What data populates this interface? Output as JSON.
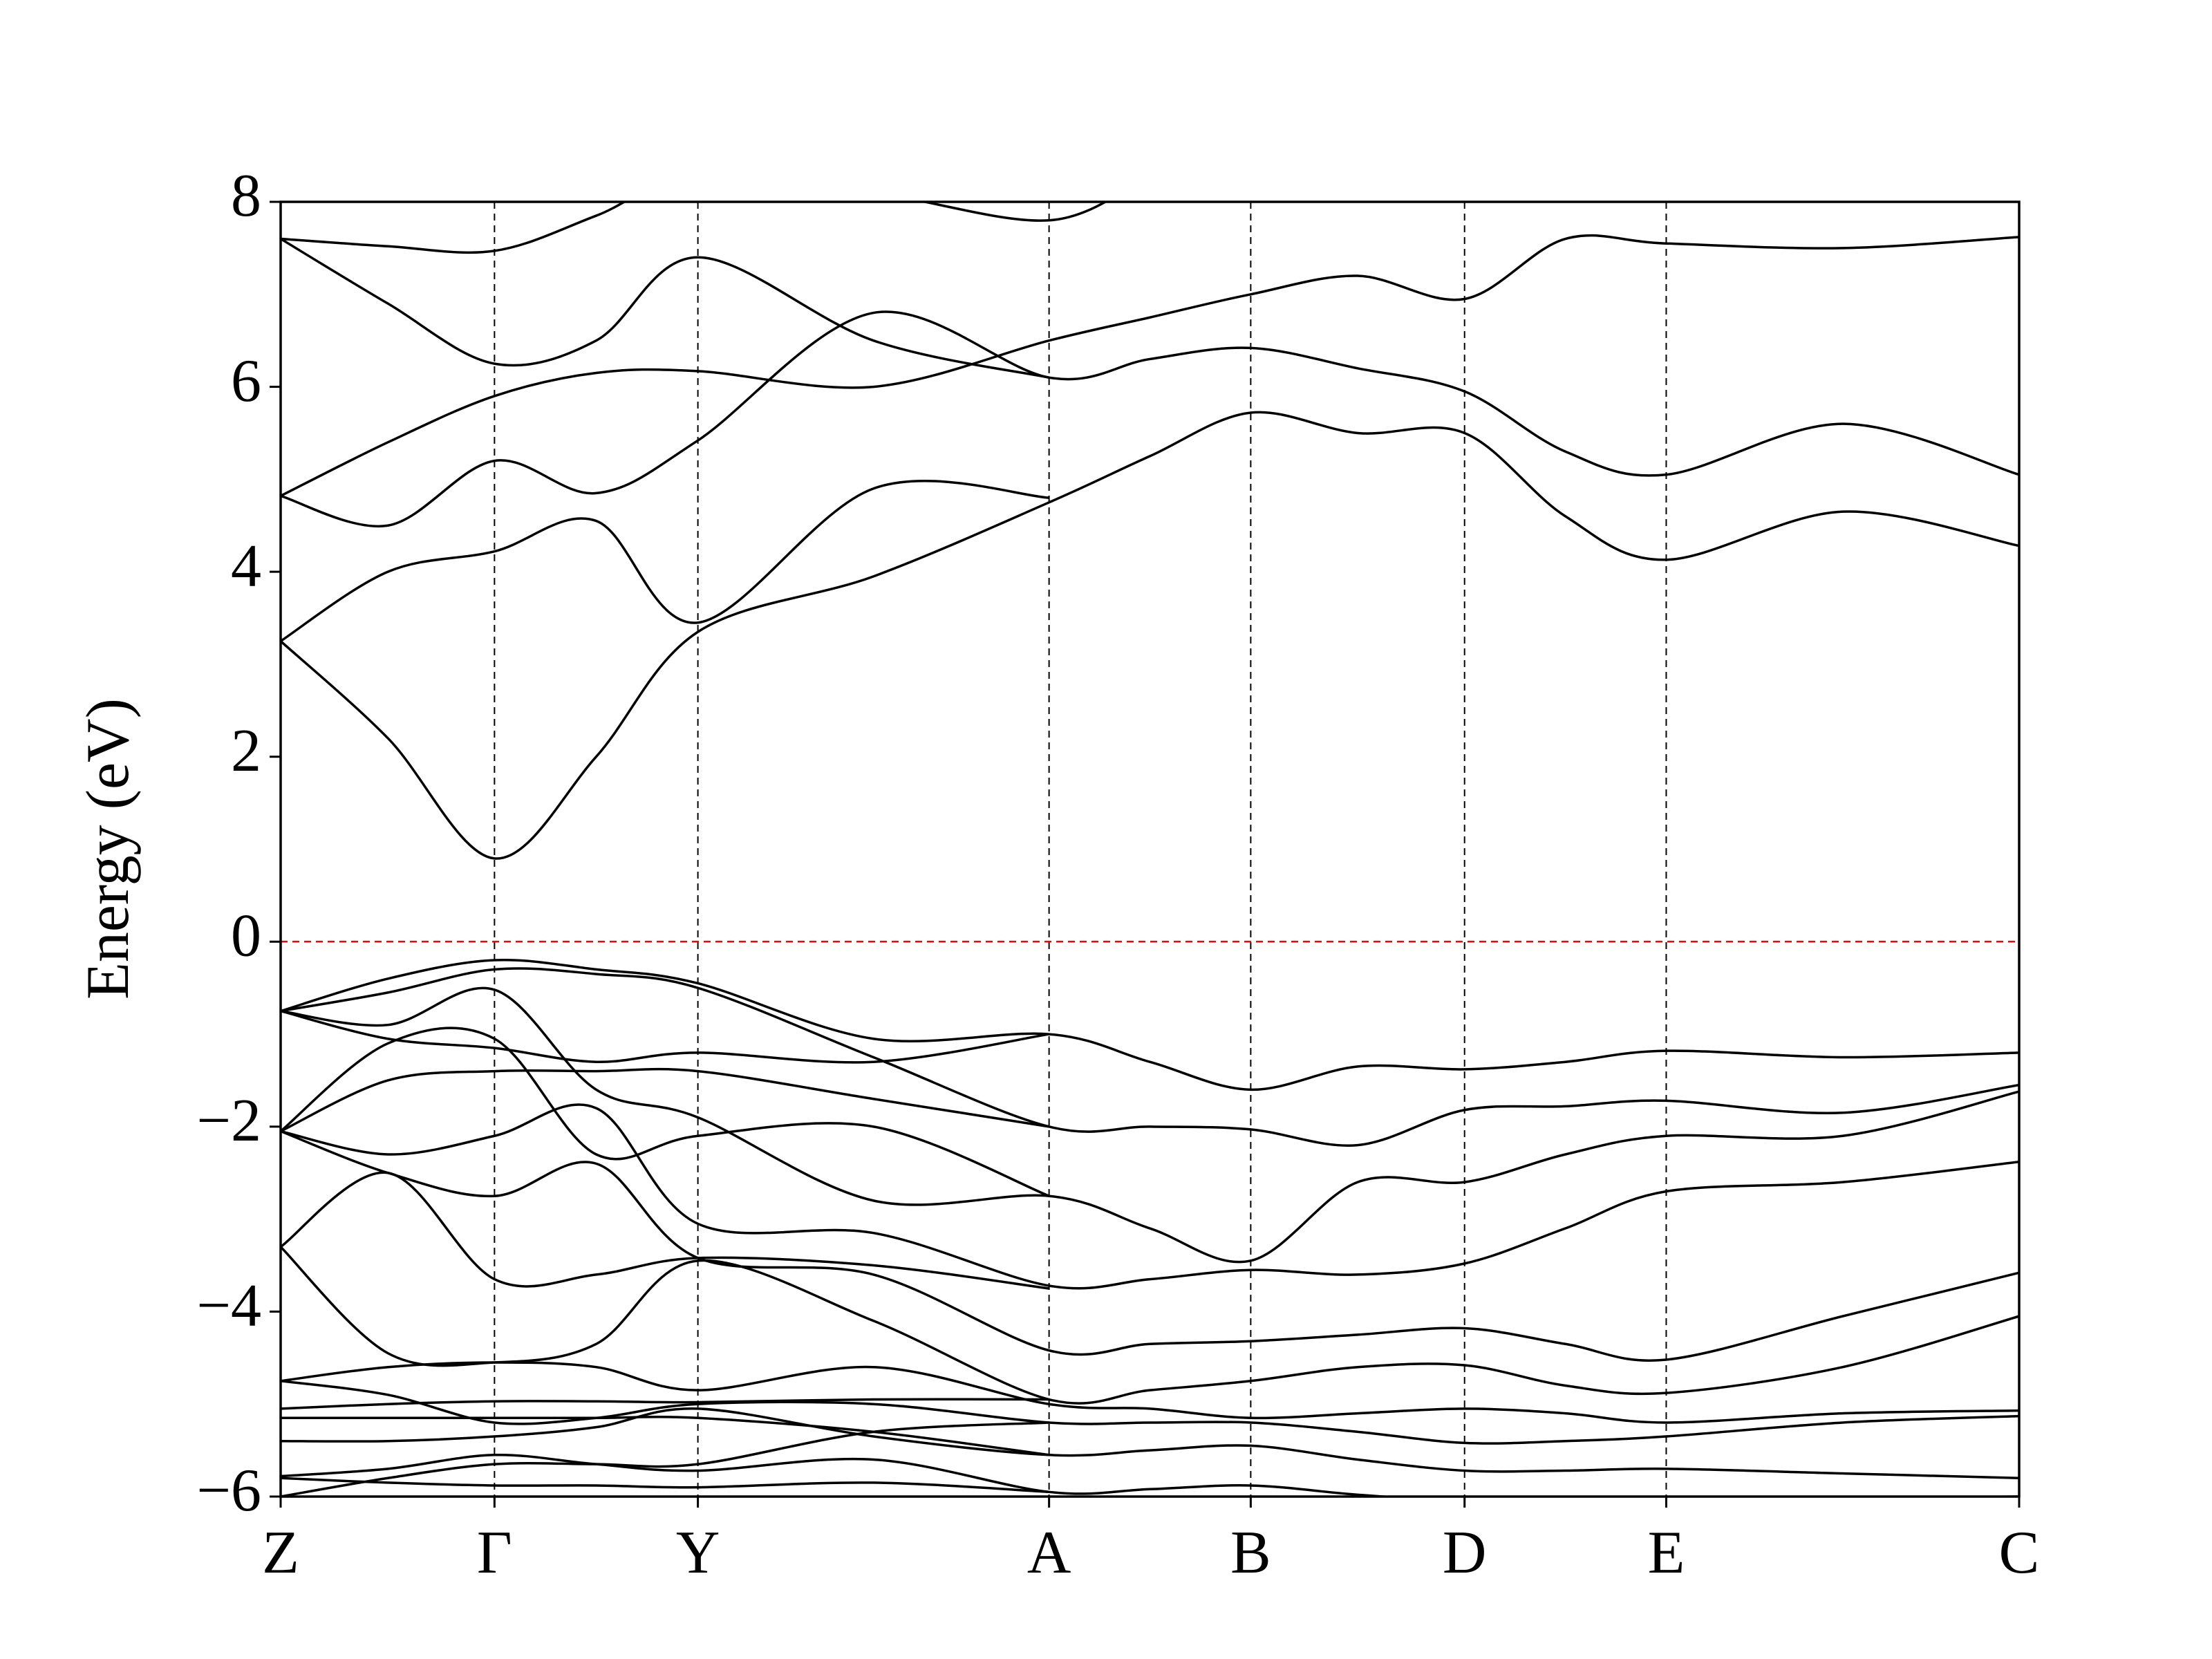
{
  "chart_data": {
    "type": "line",
    "ylabel": "Energy (eV)",
    "ylim": [
      -6,
      8
    ],
    "yticks": [
      {
        "value": -6,
        "label": "−6"
      },
      {
        "value": -4,
        "label": "−4"
      },
      {
        "value": -2,
        "label": "−2"
      },
      0,
      2,
      4,
      6,
      8
    ],
    "xlim": [
      0,
      1
    ],
    "xticks": [
      {
        "value": 0,
        "label": "Z"
      },
      {
        "value": 0.123,
        "label": "Γ"
      },
      {
        "value": 0.24,
        "label": "Y"
      },
      {
        "value": 0.442,
        "label": "A"
      },
      {
        "value": 0.558,
        "label": "B"
      },
      {
        "value": 0.681,
        "label": "D"
      },
      {
        "value": 0.797,
        "label": "E"
      },
      {
        "value": 1,
        "label": "C"
      }
    ],
    "x_grid": true,
    "x_grid_color": "#000000",
    "x_grid_style": "dashed",
    "reference_line": {
      "y": 0,
      "color": "#ff0000",
      "style": "dashed"
    },
    "line_color": "#000000",
    "x": [
      0,
      0.0617,
      0.123,
      0.1815,
      0.24,
      0.341,
      0.442,
      0.5,
      0.558,
      0.6195,
      0.681,
      0.739,
      0.797,
      0.8985,
      1
    ],
    "series": [
      {
        "values": [
          3.25,
          2.2,
          0.9,
          2.0,
          3.35,
          3.95,
          4.75,
          5.25,
          5.72,
          5.5,
          5.5,
          4.6,
          4.13,
          4.65,
          4.28
        ]
      },
      {
        "values": [
          3.25,
          4.0,
          4.22,
          4.55,
          3.45,
          4.9,
          4.8,
          null,
          null,
          null,
          null,
          null,
          null,
          null,
          null
        ]
      },
      {
        "values": [
          4.82,
          4.5,
          5.2,
          4.85,
          5.42,
          6.8,
          6.1,
          6.3,
          6.42,
          6.2,
          5.95,
          5.3,
          5.05,
          5.6,
          5.05
        ]
      },
      {
        "values": [
          4.82,
          5.4,
          5.9,
          6.15,
          6.17,
          6.0,
          6.5,
          6.75,
          7.0,
          7.2,
          6.95,
          7.6,
          7.55,
          7.5,
          7.62
        ]
      },
      {
        "values": [
          7.6,
          6.9,
          6.25,
          6.5,
          7.4,
          6.5,
          6.1,
          null,
          null,
          null,
          null,
          null,
          null,
          null,
          null
        ]
      },
      {
        "values": [
          7.6,
          7.52,
          7.47,
          7.85,
          8.3,
          8.1,
          7.8,
          8.3,
          null,
          null,
          null,
          null,
          null,
          null,
          null
        ]
      },
      {
        "values": [
          -0.75,
          -0.4,
          -0.2,
          -0.3,
          -0.45,
          -1.05,
          -1.0,
          -1.3,
          -1.6,
          -1.35,
          -1.38,
          -1.3,
          -1.18,
          -1.25,
          -1.2
        ]
      },
      {
        "values": [
          -0.75,
          -0.55,
          -0.3,
          -0.35,
          -0.5,
          -1.25,
          -2.0,
          -2.0,
          -2.03,
          -2.2,
          -1.82,
          -1.78,
          -1.72,
          -1.85,
          -1.55
        ]
      },
      {
        "values": [
          -0.75,
          -0.9,
          -0.52,
          -1.6,
          -1.9,
          -2.8,
          -2.75,
          -3.1,
          -3.45,
          -2.6,
          -2.6,
          -2.3,
          -2.1,
          -2.1,
          -1.62
        ]
      },
      {
        "values": [
          -0.75,
          -1.05,
          -1.15,
          -1.3,
          -1.2,
          -1.3,
          -1.0,
          null,
          null,
          null,
          null,
          null,
          null,
          null,
          null
        ]
      },
      {
        "values": [
          -2.05,
          -1.5,
          -1.4,
          -1.4,
          -1.4,
          -1.7,
          -2.0,
          null,
          null,
          null,
          null,
          null,
          null,
          null,
          null
        ]
      },
      {
        "values": [
          -2.05,
          -1.1,
          -1.05,
          -2.3,
          -2.1,
          -2.0,
          -2.75,
          null,
          null,
          null,
          null,
          null,
          null,
          null,
          null
        ]
      },
      {
        "values": [
          -2.05,
          -2.3,
          -2.1,
          -1.8,
          -3.05,
          -3.15,
          -3.72,
          -3.65,
          -3.55,
          -3.6,
          -3.48,
          -3.1,
          -2.7,
          -2.6,
          -2.38
        ]
      },
      {
        "values": [
          -2.05,
          -2.5,
          -2.75,
          -2.4,
          -3.42,
          -3.6,
          -4.42,
          -4.35,
          -4.32,
          -4.25,
          -4.18,
          -4.35,
          -4.52,
          -4.05,
          -3.58
        ]
      },
      {
        "values": [
          -3.3,
          -2.5,
          -3.65,
          -3.6,
          -3.42,
          -3.5,
          -3.75,
          null,
          null,
          null,
          null,
          null,
          null,
          null,
          null
        ]
      },
      {
        "values": [
          -3.3,
          -4.45,
          -4.55,
          -4.35,
          -3.45,
          -4.1,
          -4.95,
          -4.85,
          -4.75,
          -4.6,
          -4.58,
          -4.8,
          -4.88,
          -4.6,
          -4.05
        ]
      },
      {
        "values": [
          -4.75,
          -4.6,
          -4.55,
          -4.6,
          -4.85,
          -4.6,
          -5.0,
          -5.05,
          -5.15,
          -5.1,
          -5.05,
          -5.1,
          -5.2,
          -5.1,
          -5.07
        ]
      },
      {
        "values": [
          -4.75,
          -4.9,
          -5.2,
          -5.15,
          -5.0,
          -5.0,
          -5.2,
          -5.2,
          -5.2,
          -5.3,
          -5.42,
          -5.4,
          -5.35,
          -5.2,
          -5.13
        ]
      },
      {
        "values": [
          -5.05,
          -5.0,
          -4.97,
          -4.97,
          -4.98,
          -4.95,
          -4.95,
          null,
          null,
          null,
          null,
          null,
          null,
          null,
          null
        ]
      },
      {
        "values": [
          -5.4,
          -5.4,
          -5.35,
          -5.25,
          -5.05,
          -5.35,
          -5.55,
          -5.5,
          -5.45,
          -5.6,
          -5.72,
          -5.72,
          -5.7,
          -5.75,
          -5.8
        ]
      },
      {
        "values": [
          -5.78,
          -5.7,
          -5.55,
          -5.65,
          -5.72,
          -5.6,
          -5.95,
          -5.92,
          -5.88,
          -5.98,
          -6.05,
          -6.05,
          -6.05,
          -6.02,
          -6.0
        ]
      },
      {
        "values": [
          -6.0,
          -5.8,
          -5.65,
          -5.65,
          -5.65,
          -5.3,
          -5.2,
          null,
          null,
          null,
          null,
          null,
          null,
          null,
          null
        ]
      },
      {
        "values": [
          -5.8,
          -5.85,
          -5.88,
          -5.88,
          -5.9,
          -5.85,
          -5.95,
          null,
          null,
          null,
          null,
          null,
          null,
          null,
          null
        ]
      },
      {
        "values": [
          -5.15,
          -5.15,
          -5.15,
          -5.15,
          -5.15,
          -5.3,
          -5.55,
          null,
          null,
          null,
          null,
          null,
          null,
          null,
          null
        ]
      }
    ]
  }
}
